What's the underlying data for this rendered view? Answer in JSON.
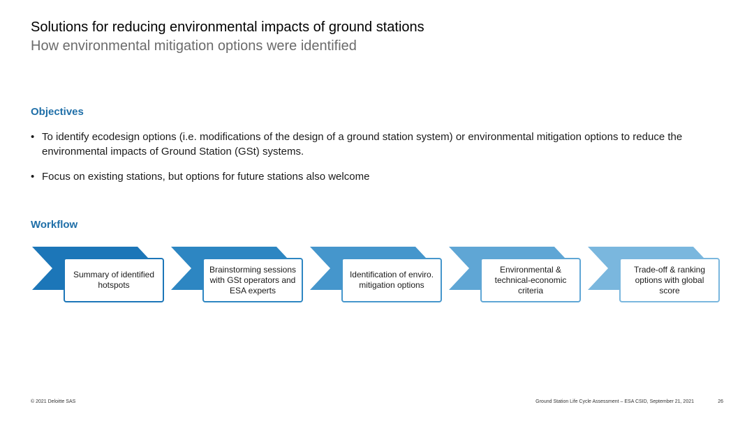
{
  "slide": {
    "title": "Solutions for reducing environmental impacts of ground stations",
    "subtitle": "How environmental mitigation options were identified"
  },
  "objectives": {
    "heading": "Objectives",
    "bullets": [
      "To identify ecodesign options (i.e. modifications of the design of a ground station system) or environmental mitigation options to reduce the environmental impacts of Ground Station (GSt) systems.",
      "Focus on existing stations, but options for future stations also welcome"
    ]
  },
  "workflow": {
    "heading": "Workflow",
    "steps": [
      {
        "label": "Summary of identified hotspots",
        "color": "#1c76b8"
      },
      {
        "label": "Brainstorming sessions with GSt operators and ESA experts",
        "color": "#2d86c2"
      },
      {
        "label": "Identification of enviro. mitigation options",
        "color": "#4596cc"
      },
      {
        "label": "Environmental & technical-economic criteria",
        "color": "#5fa6d5"
      },
      {
        "label": "Trade-off & ranking options with global score",
        "color": "#7ab7de"
      }
    ]
  },
  "footer": {
    "copyright": "© 2021 Deloitte SAS",
    "document": "Ground Station Life Cycle Assessment – ESA CSID, September 21, 2021",
    "page_number": "26"
  }
}
